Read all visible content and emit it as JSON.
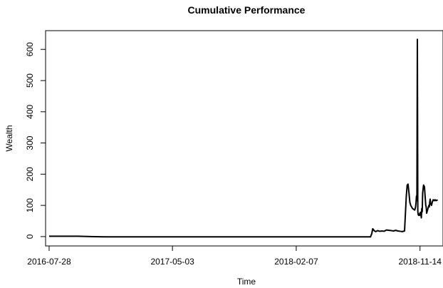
{
  "chart_data": {
    "type": "line",
    "title": "Cumulative Performance",
    "xlabel": "Time",
    "ylabel": "Wealth",
    "x_ticks": [
      "2016-07-28",
      "2017-05-03",
      "2018-02-07",
      "2018-11-14"
    ],
    "y_ticks": [
      0,
      100,
      200,
      300,
      400,
      500,
      600
    ],
    "xlim": [
      "2016-07-20",
      "2019-01-05"
    ],
    "ylim": [
      -30,
      660
    ],
    "grid": false,
    "legend": "none",
    "colors": {
      "line": "#000000",
      "axis": "#000000"
    },
    "series": [
      {
        "x": [
          "2016-07-28",
          "2016-10-01",
          "2016-12-01",
          "2017-03-01",
          "2017-06-01",
          "2017-09-01",
          "2017-12-01",
          "2018-02-01",
          "2018-04-01",
          "2018-06-01",
          "2018-07-25",
          "2018-07-28",
          "2018-07-30",
          "2018-08-03",
          "2018-08-06",
          "2018-08-10",
          "2018-08-15",
          "2018-08-20",
          "2018-08-25",
          "2018-08-30",
          "2018-09-05",
          "2018-09-10",
          "2018-09-15",
          "2018-09-20",
          "2018-09-25",
          "2018-09-30",
          "2018-10-05",
          "2018-10-10",
          "2018-10-14",
          "2018-10-16",
          "2018-10-18",
          "2018-10-20",
          "2018-10-22",
          "2018-10-24",
          "2018-10-26",
          "2018-10-28",
          "2018-10-30",
          "2018-11-02",
          "2018-11-04",
          "2018-11-05",
          "2018-11-06",
          "2018-11-07",
          "2018-11-08",
          "2018-11-09",
          "2018-11-10",
          "2018-11-11",
          "2018-11-12",
          "2018-11-13",
          "2018-11-14",
          "2018-11-15",
          "2018-11-16",
          "2018-11-17",
          "2018-11-18",
          "2018-11-19",
          "2018-11-20",
          "2018-11-22",
          "2018-11-24",
          "2018-11-26",
          "2018-11-27",
          "2018-11-28",
          "2018-11-29",
          "2018-11-30",
          "2018-12-01",
          "2018-12-02",
          "2018-12-04",
          "2018-12-05",
          "2018-12-06",
          "2018-12-07",
          "2018-12-08",
          "2018-12-10",
          "2018-12-12",
          "2018-12-14",
          "2018-12-16",
          "2018-12-18",
          "2018-12-20",
          "2018-12-22",
          "2018-12-24"
        ],
        "y": [
          1,
          1,
          -1,
          -1,
          -1,
          -1,
          -1,
          -1,
          -1,
          -1,
          -1,
          10,
          25,
          18,
          16,
          19,
          17,
          18,
          17,
          21,
          20,
          19,
          18,
          20,
          18,
          17,
          16,
          18,
          130,
          165,
          168,
          140,
          110,
          100,
          95,
          90,
          88,
          85,
          95,
          110,
          130,
          115,
          632,
          80,
          70,
          68,
          72,
          68,
          75,
          78,
          70,
          60,
          90,
          80,
          140,
          165,
          160,
          120,
          100,
          95,
          75,
          80,
          85,
          90,
          100,
          95,
          110,
          120,
          105,
          100,
          112,
          118,
          115,
          118,
          115,
          117,
          116
        ]
      }
    ]
  }
}
